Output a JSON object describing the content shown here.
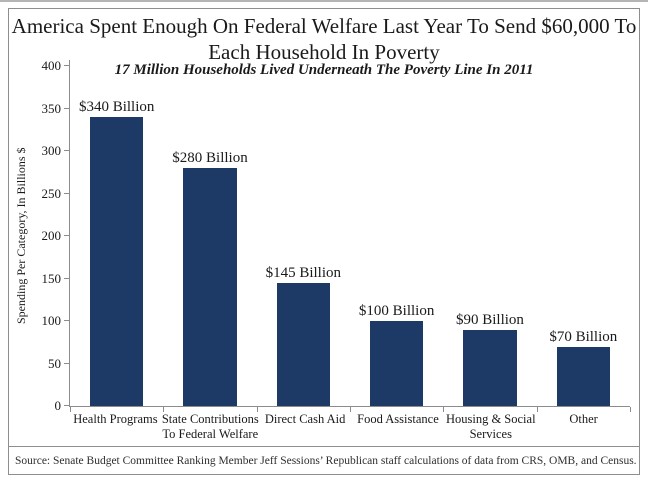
{
  "chart_data": {
    "type": "bar",
    "title": "America Spent Enough On Federal Welfare Last Year To Send $60,000 To Each Household In Poverty",
    "title_lines": [
      "America Spent Enough On Federal Welfare Last Year To Send $60,000 To",
      "Each Household In Poverty"
    ],
    "subtitle": "17 Million Households Lived Underneath The Poverty Line In 2011",
    "categories": [
      "Health Programs",
      "State Contributions To Federal Welfare",
      "Direct Cash Aid",
      "Food Assistance",
      "Housing & Social Services",
      "Other"
    ],
    "category_lines": [
      [
        "Health Programs"
      ],
      [
        "State Contributions",
        "To Federal Welfare"
      ],
      [
        "Direct Cash Aid"
      ],
      [
        "Food Assistance"
      ],
      [
        "Housing & Social",
        "Services"
      ],
      [
        "Other"
      ]
    ],
    "values": [
      340,
      280,
      145,
      100,
      90,
      70
    ],
    "bar_labels": [
      "$340 Billion",
      "$280 Billion",
      "$145 Billion",
      "$100 Billion",
      "$90 Billion",
      "$70 Billion"
    ],
    "xlabel": "",
    "ylabel": "Spending Per Category, In Billions $",
    "ylim": [
      0,
      400
    ],
    "yticks": [
      0,
      50,
      100,
      150,
      200,
      250,
      300,
      350,
      400
    ],
    "grid": false,
    "legend": false,
    "bar_color": "#1d3a66",
    "axis_color": "#8c8c8c"
  },
  "source": {
    "text": "Source: Senate Budget Committee Ranking Member Jeff Sessions’ Republican staff calculations of data from CRS, OMB, and Census."
  }
}
